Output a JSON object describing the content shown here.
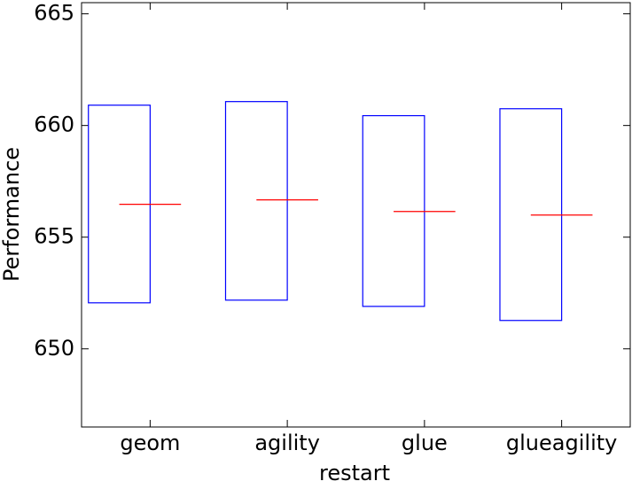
{
  "chart_data": {
    "type": "box",
    "x_label": "restart",
    "y_label": "Performance",
    "categories": [
      "geom",
      "agility",
      "glue",
      "glueagility"
    ],
    "q1": [
      652.06,
      652.18,
      651.9,
      651.27
    ],
    "median": [
      656.47,
      656.67,
      656.15,
      655.99
    ],
    "q3": [
      660.91,
      661.07,
      660.44,
      660.75
    ],
    "box_color": "#0000ff",
    "median_color": "#ff0000",
    "ylim": [
      646.5,
      665.5
    ],
    "yticks": [
      650,
      655,
      660,
      665
    ]
  }
}
